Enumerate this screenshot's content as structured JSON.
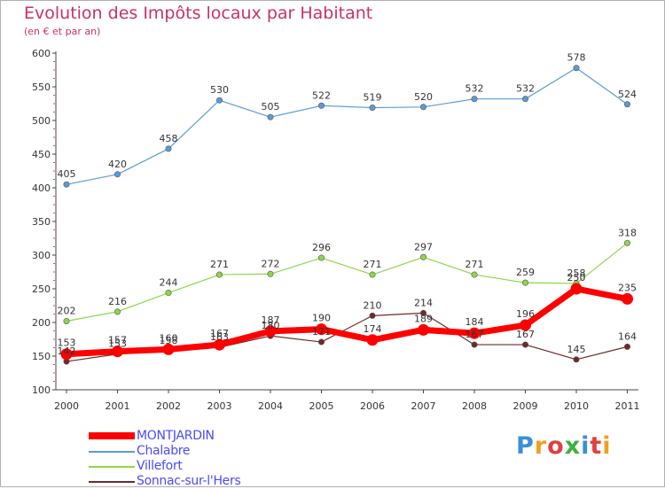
{
  "title": "Evolution des Impôts locaux par Habitant",
  "subtitle": "(en € et par an)",
  "logo": {
    "text": "Proxiti",
    "colors": [
      "#3a8fd6",
      "#f0a020",
      "#e04040",
      "#40b040",
      "#3a8fd6",
      "#e04040",
      "#f0a020"
    ]
  },
  "chart_data": {
    "type": "line",
    "x": [
      "2000",
      "2001",
      "2002",
      "2003",
      "2004",
      "2005",
      "2006",
      "2007",
      "2008",
      "2009",
      "2010",
      "2011"
    ],
    "ylim": [
      100,
      600
    ],
    "yticks": [
      "100",
      "150",
      "200",
      "250",
      "300",
      "350",
      "400",
      "450",
      "500",
      "550",
      "600"
    ],
    "grid": false,
    "legend_position": "bottom-left",
    "series": [
      {
        "name": "Chalabre",
        "color": "#5b9bd5",
        "values": [
          405,
          420,
          458,
          530,
          505,
          522,
          519,
          520,
          532,
          532,
          578,
          524
        ],
        "labels": [
          "405",
          "420",
          "458",
          "530",
          "505",
          "522",
          "519",
          "520",
          "532",
          "532",
          "578",
          "524"
        ]
      },
      {
        "name": "Villefort",
        "color": "#8ed64a",
        "values": [
          202,
          216,
          244,
          271,
          272,
          296,
          271,
          297,
          271,
          259,
          258,
          318
        ],
        "labels": [
          "202",
          "216",
          "244",
          "271",
          "272",
          "296",
          "271",
          "297",
          "271",
          "259",
          "258",
          "318"
        ]
      },
      {
        "name": "Sonnac-sur-l'Hers",
        "color": "#6e2a2a",
        "values": [
          142,
          153,
          158,
          163,
          180,
          171,
          210,
          214,
          167,
          167,
          145,
          164
        ],
        "labels": [
          "142",
          "153",
          "158",
          "163",
          "180",
          "171",
          "210",
          "214",
          "167",
          "167",
          "145",
          "164"
        ]
      },
      {
        "name": "MONTJARDIN",
        "color": "#ff0000",
        "values": [
          153,
          157,
          160,
          167,
          187,
          190,
          174,
          189,
          184,
          196,
          250,
          235
        ],
        "labels": [
          "153",
          "157",
          "160",
          "167",
          "187",
          "190",
          "174",
          "189",
          "184",
          "196",
          "250",
          "235"
        ]
      }
    ],
    "legend": [
      "MONTJARDIN",
      "Chalabre",
      "Villefort",
      "Sonnac-sur-l'Hers"
    ]
  }
}
